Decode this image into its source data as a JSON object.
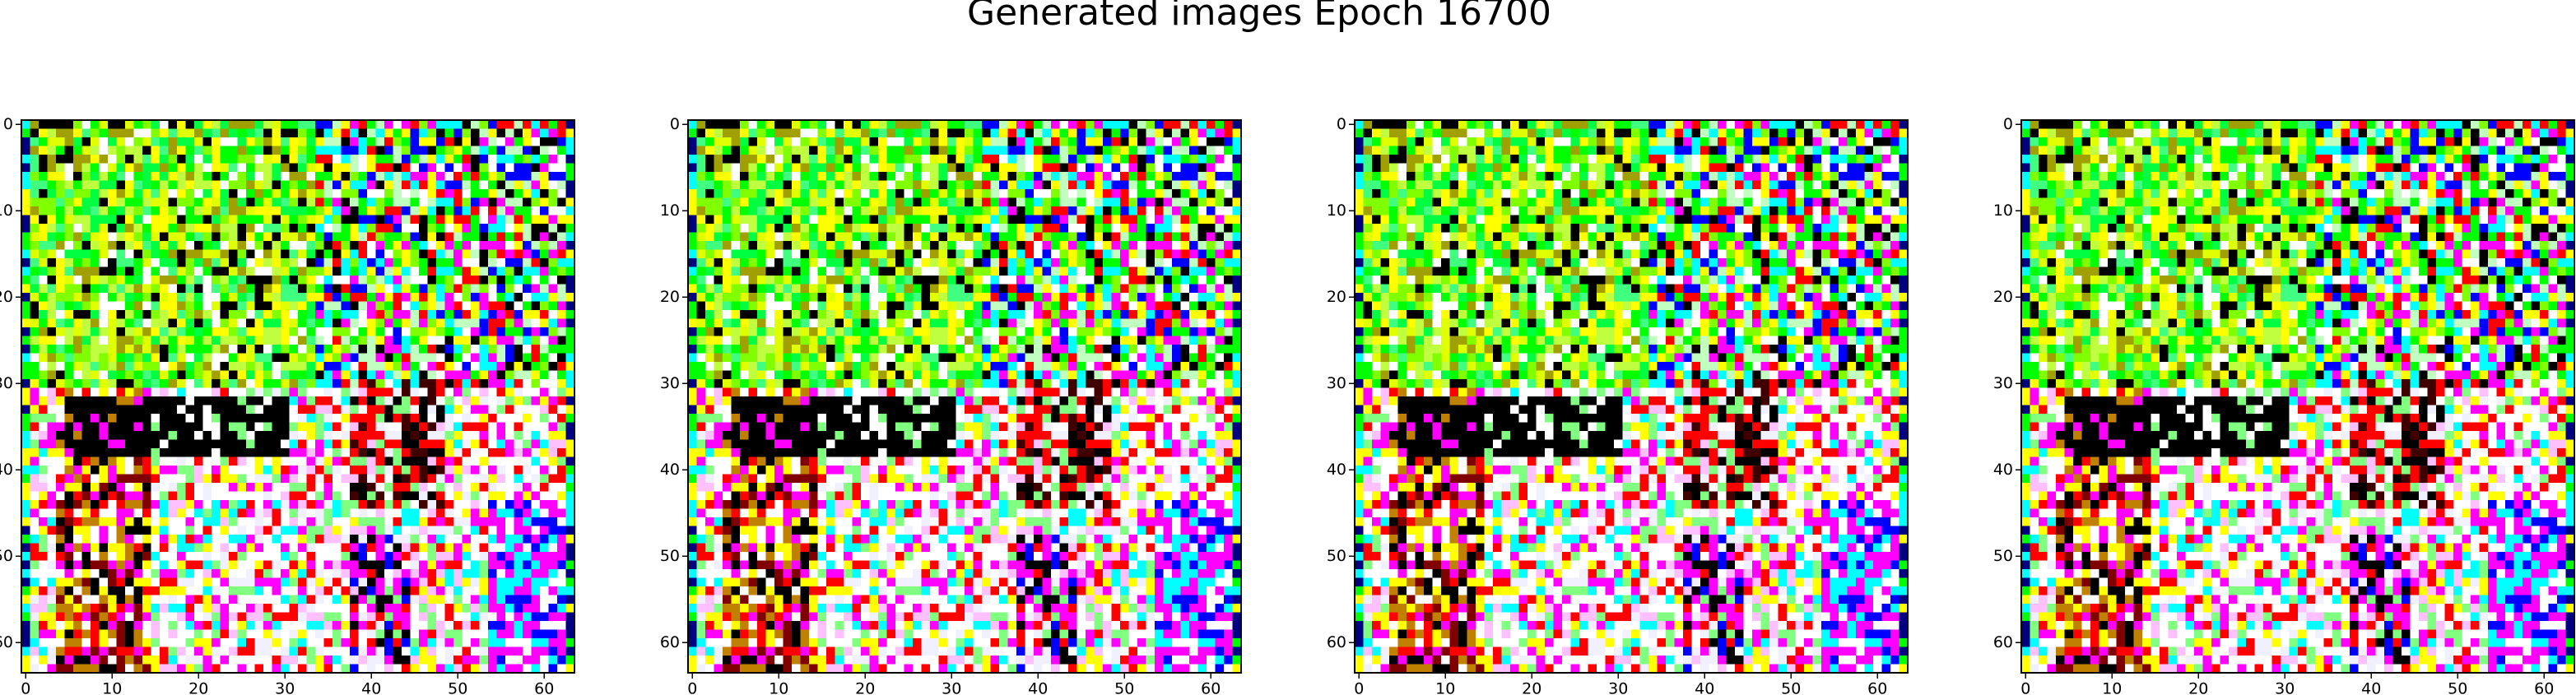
{
  "title": "Generated images Epoch 16700",
  "chart_data": [
    {
      "type": "image",
      "xlim": [
        -0.5,
        63.5
      ],
      "ylim": [
        63.5,
        -0.5
      ],
      "xticks": [
        0,
        10,
        20,
        30,
        40,
        50,
        60
      ],
      "yticks": [
        0,
        10,
        20,
        30,
        40,
        50,
        60
      ]
    },
    {
      "type": "image",
      "xlim": [
        -0.5,
        63.5
      ],
      "ylim": [
        63.5,
        -0.5
      ],
      "xticks": [
        0,
        10,
        20,
        30,
        40,
        50,
        60
      ],
      "yticks": [
        0,
        10,
        20,
        30,
        40,
        50,
        60
      ]
    },
    {
      "type": "image",
      "xlim": [
        -0.5,
        63.5
      ],
      "ylim": [
        63.5,
        -0.5
      ],
      "xticks": [
        0,
        10,
        20,
        30,
        40,
        50,
        60
      ],
      "yticks": [
        0,
        10,
        20,
        30,
        40,
        50,
        60
      ]
    },
    {
      "type": "image",
      "xlim": [
        -0.5,
        63.5
      ],
      "ylim": [
        63.5,
        -0.5
      ],
      "xticks": [
        0,
        10,
        20,
        30,
        40,
        50,
        60
      ],
      "yticks": [
        0,
        10,
        20,
        30,
        40,
        50,
        60
      ]
    }
  ]
}
